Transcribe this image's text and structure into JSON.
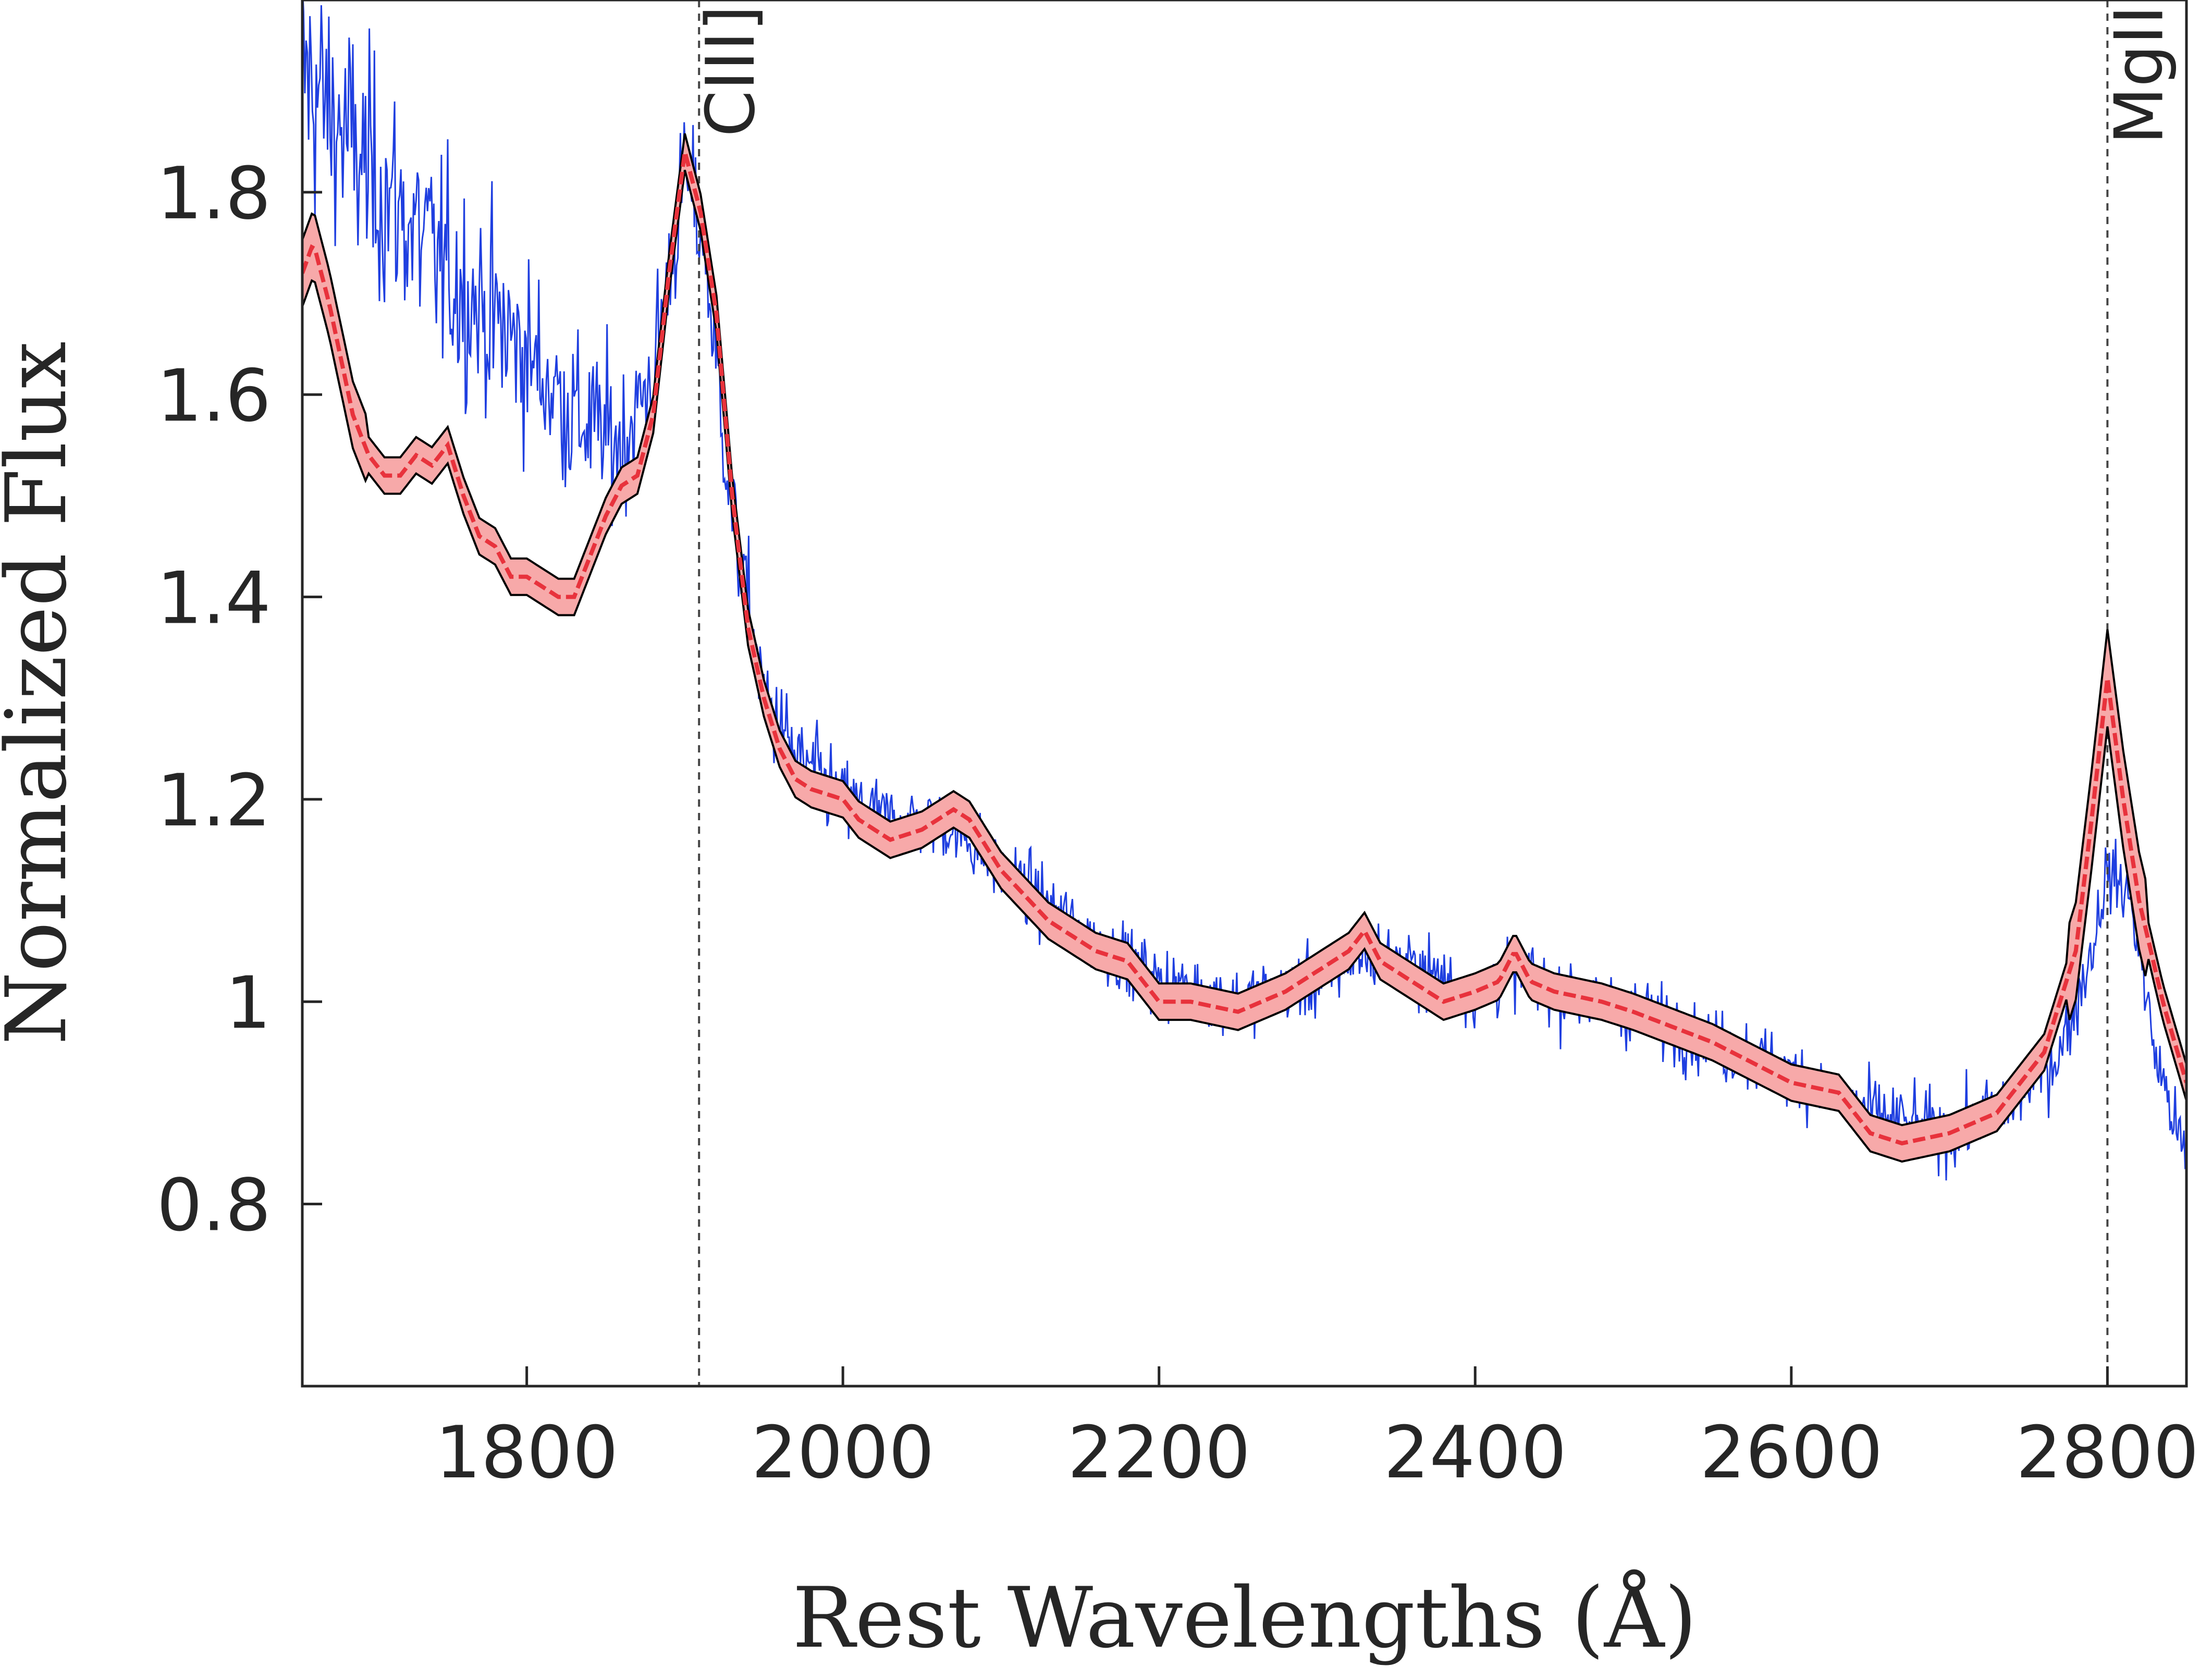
{
  "chart_data": {
    "type": "line",
    "xlabel": "Rest Wavelengths (Å)",
    "ylabel": "Normalized Flux",
    "xlim": [
      1658,
      2850
    ],
    "ylim": [
      0.62,
      1.99
    ],
    "x_ticks": [
      1800,
      2000,
      2200,
      2400,
      2600,
      2800
    ],
    "x_tick_labels": [
      "1800",
      "2000",
      "2200",
      "2400",
      "2600",
      "2800"
    ],
    "y_ticks": [
      0.8,
      1.0,
      1.2,
      1.4,
      1.6,
      1.8
    ],
    "y_tick_labels": [
      "0.8",
      "1",
      "1.2",
      "1.4",
      "1.6",
      "1.8"
    ],
    "grid": false,
    "emission_lines": [
      {
        "label": "CIII]",
        "x": 1909
      },
      {
        "label": "MgII",
        "x": 2800
      }
    ],
    "series": [
      {
        "kind": "observed-spectrum",
        "color": "#1f3fe0",
        "noise_sigma_blue": 0.12,
        "noise_sigma_red": 0.045,
        "points": [
          [
            1658,
            1.92
          ],
          [
            1700,
            1.82
          ],
          [
            1750,
            1.72
          ],
          [
            1800,
            1.64
          ],
          [
            1830,
            1.58
          ],
          [
            1860,
            1.55
          ],
          [
            1880,
            1.62
          ],
          [
            1900,
            1.82
          ],
          [
            1912,
            1.75
          ],
          [
            1930,
            1.48
          ],
          [
            1950,
            1.3
          ],
          [
            1970,
            1.24
          ],
          [
            2000,
            1.2
          ],
          [
            2030,
            1.18
          ],
          [
            2060,
            1.18
          ],
          [
            2080,
            1.16
          ],
          [
            2100,
            1.13
          ],
          [
            2150,
            1.07
          ],
          [
            2200,
            1.02
          ],
          [
            2250,
            1.0
          ],
          [
            2300,
            1.02
          ],
          [
            2330,
            1.05
          ],
          [
            2350,
            1.04
          ],
          [
            2400,
            1.01
          ],
          [
            2425,
            1.03
          ],
          [
            2450,
            1.01
          ],
          [
            2500,
            0.99
          ],
          [
            2550,
            0.96
          ],
          [
            2600,
            0.93
          ],
          [
            2650,
            0.89
          ],
          [
            2700,
            0.87
          ],
          [
            2740,
            0.9
          ],
          [
            2770,
            0.95
          ],
          [
            2790,
            1.05
          ],
          [
            2800,
            1.13
          ],
          [
            2815,
            1.1
          ],
          [
            2830,
            0.95
          ],
          [
            2850,
            0.84
          ]
        ]
      },
      {
        "kind": "model-fit",
        "color": "#e8323c",
        "band_color": "#f7a9a9",
        "outline_color": "#000000",
        "points": [
          [
            1658,
            1.72
          ],
          [
            1665,
            1.75
          ],
          [
            1675,
            1.69
          ],
          [
            1690,
            1.58
          ],
          [
            1700,
            1.54
          ],
          [
            1710,
            1.52
          ],
          [
            1720,
            1.52
          ],
          [
            1730,
            1.54
          ],
          [
            1740,
            1.53
          ],
          [
            1750,
            1.55
          ],
          [
            1760,
            1.5
          ],
          [
            1770,
            1.46
          ],
          [
            1780,
            1.45
          ],
          [
            1790,
            1.42
          ],
          [
            1800,
            1.42
          ],
          [
            1810,
            1.41
          ],
          [
            1820,
            1.4
          ],
          [
            1830,
            1.4
          ],
          [
            1840,
            1.44
          ],
          [
            1850,
            1.48
          ],
          [
            1860,
            1.51
          ],
          [
            1870,
            1.52
          ],
          [
            1880,
            1.58
          ],
          [
            1890,
            1.72
          ],
          [
            1900,
            1.84
          ],
          [
            1910,
            1.78
          ],
          [
            1920,
            1.68
          ],
          [
            1930,
            1.5
          ],
          [
            1940,
            1.37
          ],
          [
            1950,
            1.3
          ],
          [
            1960,
            1.25
          ],
          [
            1970,
            1.22
          ],
          [
            1980,
            1.21
          ],
          [
            2000,
            1.2
          ],
          [
            2010,
            1.18
          ],
          [
            2030,
            1.16
          ],
          [
            2050,
            1.17
          ],
          [
            2070,
            1.19
          ],
          [
            2080,
            1.18
          ],
          [
            2100,
            1.13
          ],
          [
            2130,
            1.08
          ],
          [
            2160,
            1.05
          ],
          [
            2180,
            1.04
          ],
          [
            2200,
            1.0
          ],
          [
            2220,
            1.0
          ],
          [
            2250,
            0.99
          ],
          [
            2280,
            1.01
          ],
          [
            2300,
            1.03
          ],
          [
            2320,
            1.05
          ],
          [
            2330,
            1.07
          ],
          [
            2340,
            1.04
          ],
          [
            2360,
            1.02
          ],
          [
            2380,
            1.0
          ],
          [
            2400,
            1.01
          ],
          [
            2415,
            1.02
          ],
          [
            2425,
            1.05
          ],
          [
            2435,
            1.02
          ],
          [
            2450,
            1.01
          ],
          [
            2480,
            1.0
          ],
          [
            2500,
            0.99
          ],
          [
            2550,
            0.96
          ],
          [
            2600,
            0.92
          ],
          [
            2630,
            0.91
          ],
          [
            2650,
            0.87
          ],
          [
            2670,
            0.86
          ],
          [
            2700,
            0.87
          ],
          [
            2730,
            0.89
          ],
          [
            2760,
            0.95
          ],
          [
            2780,
            1.05
          ],
          [
            2790,
            1.18
          ],
          [
            2800,
            1.32
          ],
          [
            2810,
            1.2
          ],
          [
            2820,
            1.1
          ],
          [
            2835,
            1.0
          ],
          [
            2850,
            0.92
          ]
        ]
      }
    ]
  }
}
